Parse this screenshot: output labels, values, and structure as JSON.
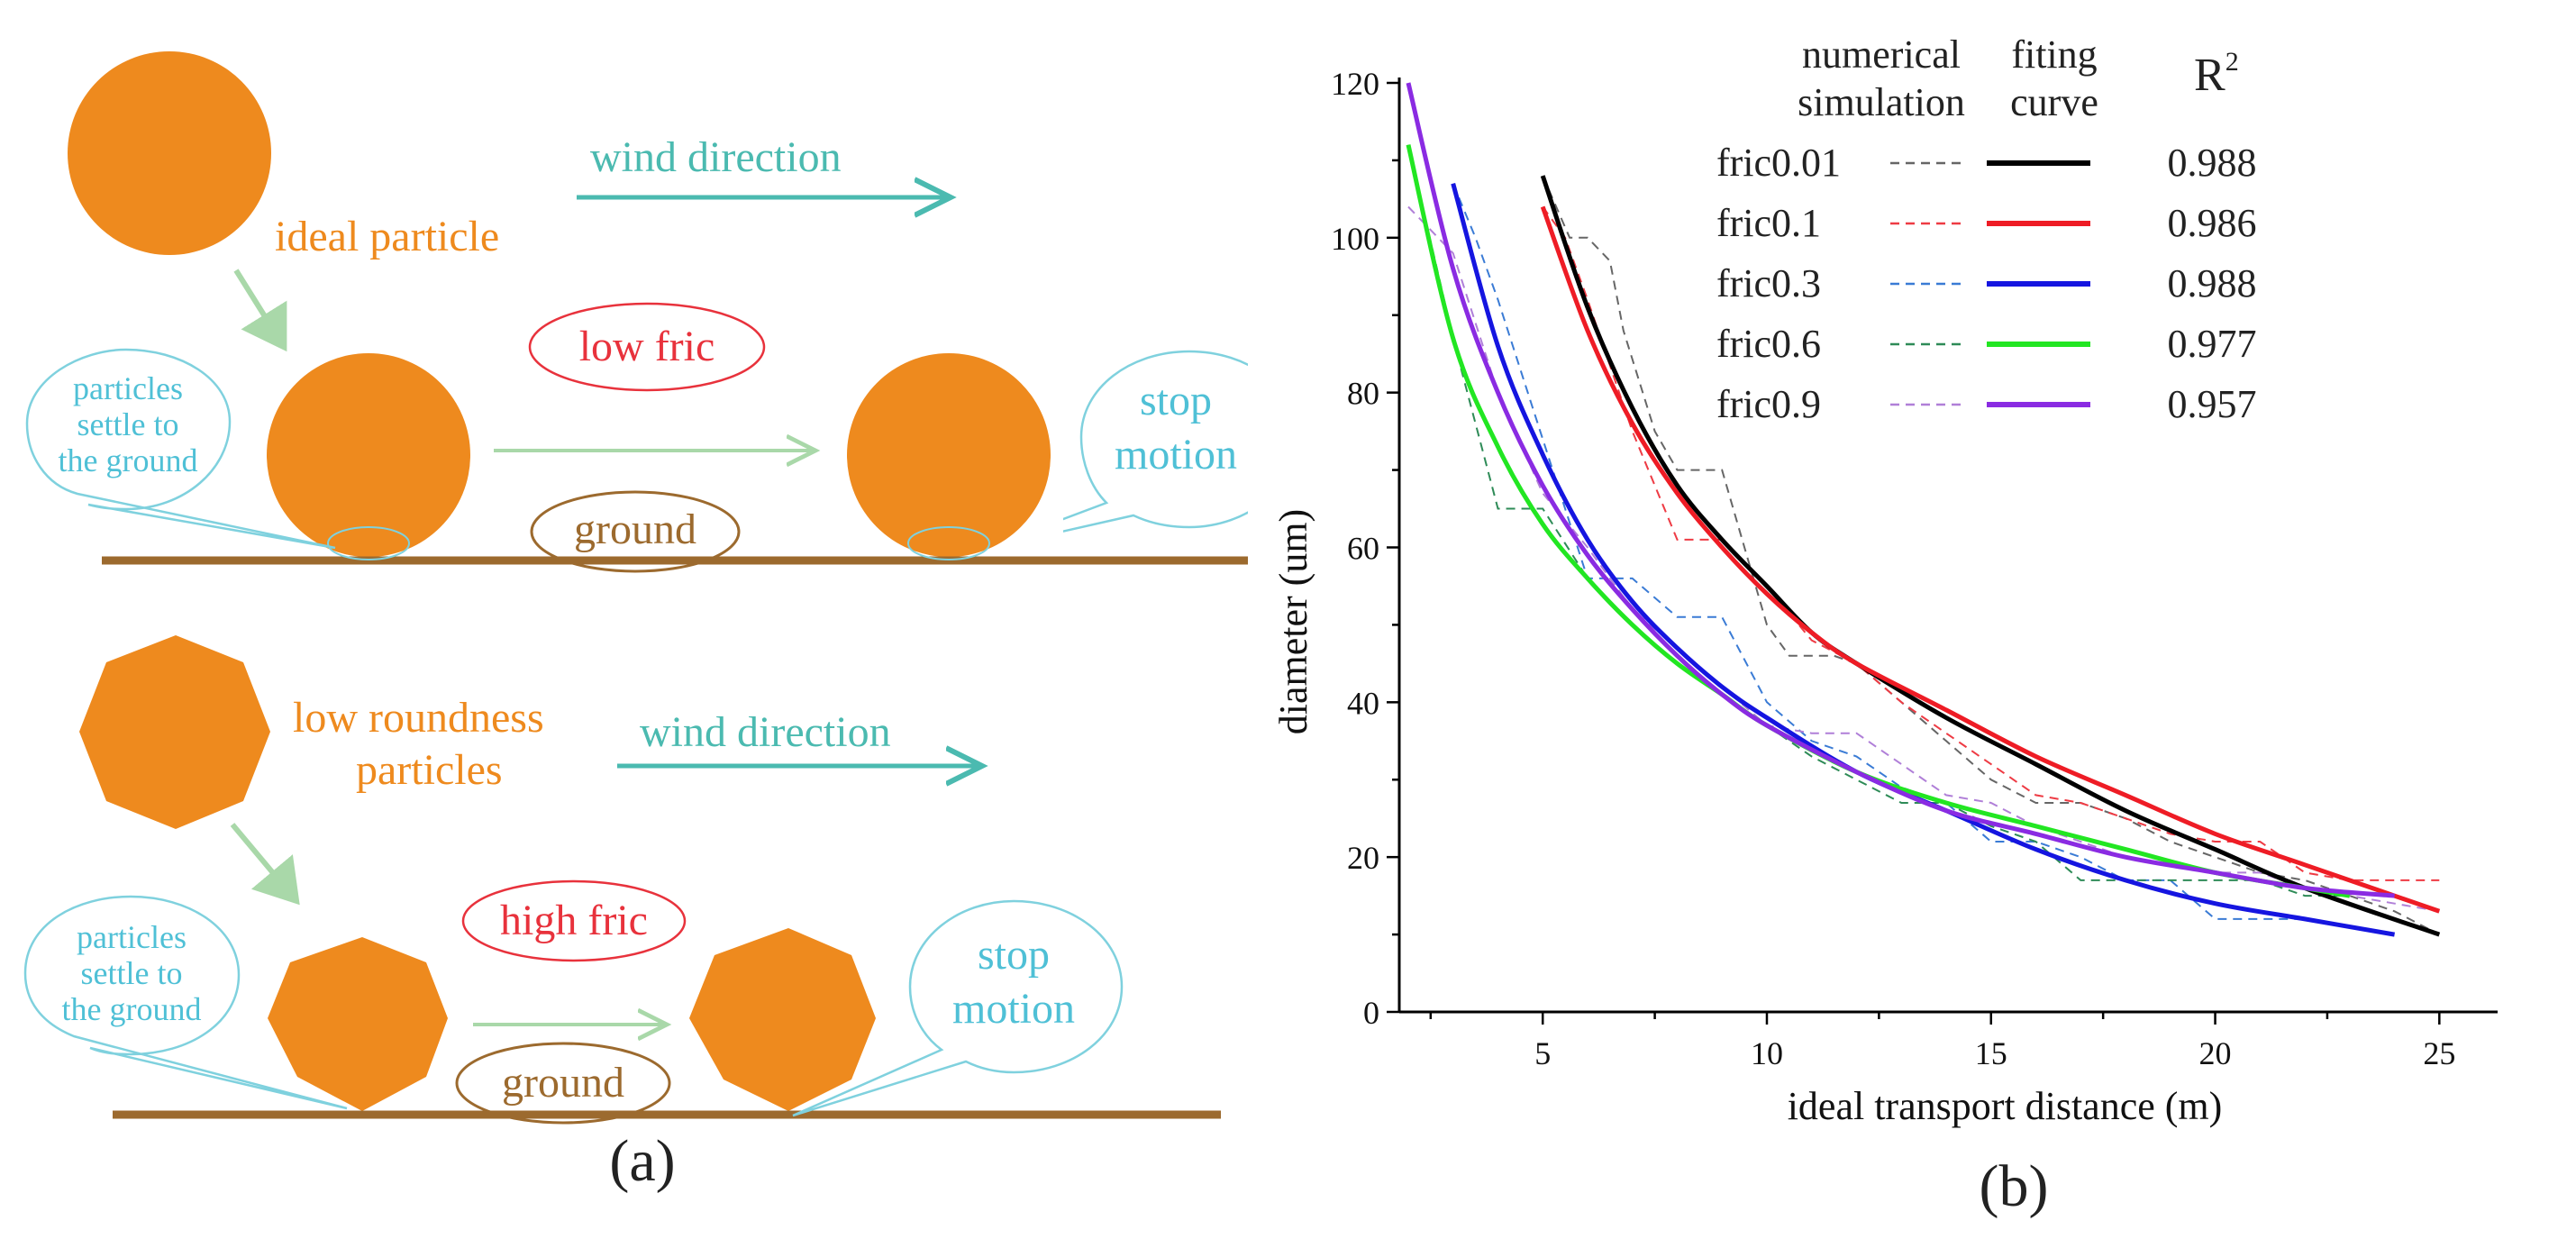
{
  "colors": {
    "orange": "#EE8A1E",
    "ground": "#9C6A2E",
    "teal": "#4BBAB0",
    "light_green": "#A9D8A9",
    "red_label": "#E8323C",
    "cyan_text": "#4FC0D6",
    "bubble_stroke": "#7FD1DE"
  },
  "panel_a": {
    "label": "(a)",
    "top": {
      "particle_label": "ideal particle",
      "wind_label": "wind direction",
      "fric_label": "low fric",
      "ground_label": "ground",
      "settle_line1": "particles",
      "settle_line2": "settle to",
      "settle_line3": "the ground",
      "stop_line1": "stop",
      "stop_line2": "motion"
    },
    "bottom": {
      "particle_line1": "low roundness",
      "particle_line2": "particles",
      "wind_label": "wind direction",
      "fric_label": "high fric",
      "ground_label": "ground",
      "settle_line1": "particles",
      "settle_line2": "settle to",
      "settle_line3": "the ground",
      "stop_line1": "stop",
      "stop_line2": "motion"
    }
  },
  "panel_b": {
    "label": "(b)",
    "legend_header": {
      "numerical_line1": "numerical",
      "numerical_line2": "simulation",
      "fitting_line1": "fiting",
      "fitting_line2": "curve",
      "r2": "R",
      "r2_sup": "2"
    },
    "legend": [
      {
        "name": "fric0.01",
        "r2": "0.988",
        "color": "#000000",
        "dash_color": "#666666"
      },
      {
        "name": "fric0.1",
        "r2": "0.986",
        "color": "#EE1C25",
        "dash_color": "#EE3B44"
      },
      {
        "name": "fric0.3",
        "r2": "0.988",
        "color": "#1515E0",
        "dash_color": "#3A7BD5"
      },
      {
        "name": "fric0.6",
        "r2": "0.977",
        "color": "#22E622",
        "dash_color": "#2E8B57"
      },
      {
        "name": "fric0.9",
        "r2": "0.957",
        "color": "#8A2BE2",
        "dash_color": "#B07FD8"
      }
    ]
  },
  "chart_data": {
    "type": "line",
    "title": "",
    "xlabel": "ideal transport distance (m)",
    "ylabel": "diameter (um)",
    "xlim": [
      1.8,
      26.3
    ],
    "ylim": [
      0,
      120
    ],
    "xticks": [
      5,
      10,
      15,
      20,
      25
    ],
    "yticks": [
      0,
      20,
      40,
      60,
      80,
      100,
      120
    ],
    "series": [
      {
        "name": "fric0.01",
        "kind": "fitting curve",
        "x": [
          5,
          6,
          7,
          8,
          9,
          10,
          11,
          12,
          14,
          16,
          18,
          20,
          22,
          25
        ],
        "y": [
          108,
          91,
          78,
          68,
          61,
          55,
          49,
          45,
          38,
          32,
          26,
          21,
          16,
          10
        ]
      },
      {
        "name": "fric0.1",
        "kind": "fitting curve",
        "x": [
          5,
          6,
          7,
          8,
          9,
          10,
          11,
          12,
          14,
          16,
          18,
          20,
          22,
          25
        ],
        "y": [
          104,
          88,
          76,
          67,
          60,
          54,
          49,
          45,
          39,
          33,
          28,
          23,
          19,
          13
        ]
      },
      {
        "name": "fric0.3",
        "kind": "fitting curve",
        "x": [
          3,
          4,
          5,
          6,
          7,
          8,
          9,
          10,
          12,
          14,
          16,
          18,
          20,
          22,
          24
        ],
        "y": [
          107,
          86,
          72,
          61,
          53,
          47,
          42,
          38,
          31,
          26,
          21,
          17,
          14,
          12,
          10
        ]
      },
      {
        "name": "fric0.6",
        "kind": "fitting curve",
        "x": [
          2,
          3,
          4,
          5,
          6,
          7,
          8,
          9,
          10,
          12,
          14,
          16,
          18,
          20,
          22,
          23
        ],
        "y": [
          112,
          87,
          73,
          63,
          56,
          50,
          45,
          41,
          37,
          31,
          27,
          24,
          21,
          18,
          16,
          15
        ]
      },
      {
        "name": "fric0.9",
        "kind": "fitting curve",
        "x": [
          2,
          3,
          4,
          5,
          6,
          7,
          8,
          9,
          10,
          12,
          14,
          16,
          18,
          20,
          22,
          24
        ],
        "y": [
          120,
          96,
          80,
          68,
          59,
          52,
          46,
          41,
          37,
          31,
          26,
          23,
          20,
          18,
          16,
          15
        ]
      },
      {
        "name": "fric0.01",
        "kind": "numerical simulation",
        "x": [
          5,
          5.6,
          6,
          6.5,
          6.8,
          7.5,
          8,
          8.5,
          9,
          9.5,
          10,
          10.5,
          11,
          11.5,
          12,
          13,
          14,
          15,
          16,
          17,
          18,
          19,
          20,
          21,
          22,
          23,
          24,
          25
        ],
        "y": [
          108,
          100,
          100,
          97,
          88,
          75,
          70,
          70,
          70,
          60,
          50,
          46,
          46,
          46,
          45,
          40,
          35,
          30,
          27,
          27,
          25,
          22,
          20,
          18,
          17,
          15,
          13,
          10
        ]
      },
      {
        "name": "fric0.1",
        "kind": "numerical simulation",
        "x": [
          5,
          5.5,
          6,
          7,
          8,
          9,
          10,
          11,
          12,
          13,
          14,
          15,
          16,
          17,
          18,
          19,
          20,
          21,
          22,
          23,
          24,
          25
        ],
        "y": [
          104,
          100,
          92,
          75,
          61,
          61,
          55,
          48,
          45,
          40,
          36,
          32,
          28,
          27,
          25,
          23,
          22,
          22,
          18,
          17,
          17,
          17
        ]
      },
      {
        "name": "fric0.3",
        "kind": "numerical simulation",
        "x": [
          3,
          3.5,
          4,
          5,
          6,
          7,
          8,
          9,
          10,
          11,
          12,
          13,
          14,
          15,
          16,
          17,
          18,
          19,
          20,
          21,
          22,
          23,
          24
        ],
        "y": [
          107,
          100,
          92,
          74,
          56,
          56,
          51,
          51,
          40,
          35,
          33,
          29,
          27,
          22,
          22,
          20,
          17,
          17,
          12,
          12,
          12,
          11,
          10
        ]
      },
      {
        "name": "fric0.6",
        "kind": "numerical simulation",
        "x": [
          2,
          3,
          4,
          5,
          6,
          7,
          8,
          9,
          10,
          11,
          12,
          13,
          14,
          15,
          16,
          17,
          18,
          19,
          20,
          21,
          22,
          23
        ],
        "y": [
          112,
          87,
          65,
          65,
          56,
          50,
          45,
          41,
          37,
          33,
          30,
          27,
          27,
          24,
          22,
          17,
          17,
          17,
          17,
          17,
          15,
          15
        ]
      },
      {
        "name": "fric0.9",
        "kind": "numerical simulation",
        "x": [
          2,
          3,
          4,
          5,
          6,
          7,
          8,
          9,
          10,
          11,
          12,
          13,
          14,
          15,
          16,
          17,
          18,
          19,
          20,
          21,
          22,
          23,
          24,
          25
        ],
        "y": [
          104,
          98,
          80,
          67,
          60,
          52,
          47,
          42,
          37,
          36,
          36,
          32,
          28,
          27,
          24,
          22,
          20,
          19,
          18,
          18,
          16,
          15,
          14,
          13
        ]
      }
    ]
  }
}
